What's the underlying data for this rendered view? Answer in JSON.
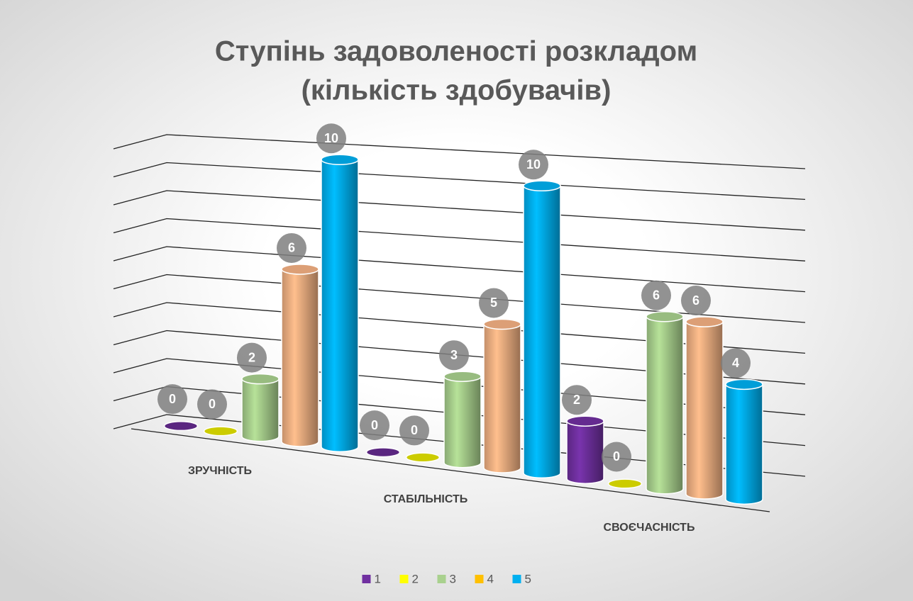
{
  "chart_data": {
    "type": "bar3d",
    "title": [
      "Ступінь задоволеності розкладом",
      "(кількість здобувачів)"
    ],
    "categories": [
      "ЗРУЧНІСТЬ",
      "СТАБІЛЬНІСТЬ",
      "СВОЄЧАСНІСТЬ"
    ],
    "series": [
      {
        "name": "1",
        "color": "#7030a0",
        "values": [
          0,
          0,
          2
        ]
      },
      {
        "name": "2",
        "color": "#ffff00",
        "values": [
          0,
          0,
          0
        ]
      },
      {
        "name": "3",
        "color": "#a9d18e",
        "values": [
          2,
          3,
          6
        ]
      },
      {
        "name": "4",
        "color": "#f4b183",
        "values": [
          6,
          5,
          6
        ]
      },
      {
        "name": "5",
        "color": "#00b0f0",
        "values": [
          10,
          10,
          4
        ]
      }
    ],
    "legend_colors": [
      "#7030a0",
      "#ffff00",
      "#a9d18e",
      "#ffc000",
      "#00b0f0"
    ],
    "ylim": [
      0,
      10
    ],
    "yticks": [
      0,
      1,
      2,
      3,
      4,
      5,
      6,
      7,
      8,
      9,
      10
    ],
    "grid": true,
    "legend": "bottom"
  }
}
